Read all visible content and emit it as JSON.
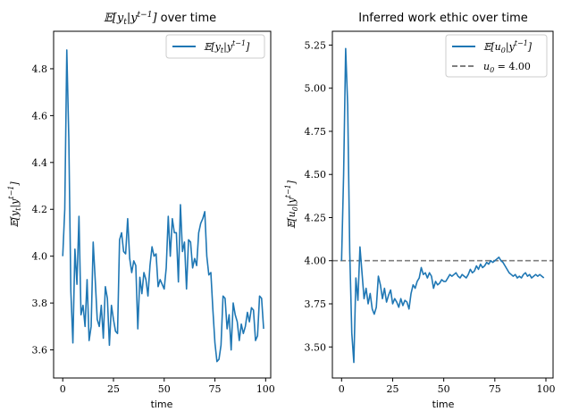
{
  "chart_data": [
    {
      "type": "line",
      "title": "𝔼[y_t|y^{t-1}] over time",
      "xlabel": "time",
      "ylabel": "𝔼[y_t|y^{t-1}]",
      "xlim": [
        -4.5,
        102.5
      ],
      "ylim": [
        3.48,
        4.96
      ],
      "xticks": [
        0,
        25,
        50,
        75,
        100
      ],
      "yticks": [
        3.6,
        3.8,
        4.0,
        4.2,
        4.4,
        4.6,
        4.8
      ],
      "ytick_labels": [
        "3.6",
        "3.8",
        "4.0",
        "4.2",
        "4.4",
        "4.6",
        "4.8"
      ],
      "legend_position": "top-right",
      "grid": false,
      "series": [
        {
          "name": "𝔼[y_t|y^{t-1}]",
          "color": "#1f77b4",
          "x": [
            0,
            1,
            2,
            3,
            4,
            5,
            6,
            7,
            8,
            9,
            10,
            11,
            12,
            13,
            14,
            15,
            16,
            17,
            18,
            19,
            20,
            21,
            22,
            23,
            24,
            25,
            26,
            27,
            28,
            29,
            30,
            31,
            32,
            33,
            34,
            35,
            36,
            37,
            38,
            39,
            40,
            41,
            42,
            43,
            44,
            45,
            46,
            47,
            48,
            49,
            50,
            51,
            52,
            53,
            54,
            55,
            56,
            57,
            58,
            59,
            60,
            61,
            62,
            63,
            64,
            65,
            66,
            67,
            68,
            69,
            70,
            71,
            72,
            73,
            74,
            75,
            76,
            77,
            78,
            79,
            80,
            81,
            82,
            83,
            84,
            85,
            86,
            87,
            88,
            89,
            90,
            91,
            92,
            93,
            94,
            95,
            96,
            97,
            98,
            99
          ],
          "values": [
            4.0,
            4.2,
            4.88,
            4.5,
            3.85,
            3.63,
            4.03,
            3.88,
            4.17,
            3.75,
            3.79,
            3.7,
            3.9,
            3.64,
            3.7,
            4.06,
            3.9,
            3.73,
            3.7,
            3.79,
            3.65,
            3.87,
            3.82,
            3.62,
            3.79,
            3.73,
            3.68,
            3.67,
            4.07,
            4.1,
            4.02,
            4.01,
            4.16,
            3.99,
            3.93,
            3.98,
            3.96,
            3.69,
            3.91,
            3.84,
            3.93,
            3.9,
            3.83,
            3.96,
            4.04,
            4.0,
            4.01,
            3.87,
            3.9,
            3.88,
            3.86,
            3.95,
            4.17,
            4.0,
            4.16,
            4.1,
            4.1,
            3.89,
            4.22,
            4.02,
            4.06,
            3.86,
            4.07,
            4.06,
            3.95,
            3.99,
            3.96,
            4.1,
            4.14,
            4.16,
            4.19,
            4.0,
            3.92,
            3.93,
            3.77,
            3.63,
            3.55,
            3.56,
            3.62,
            3.83,
            3.82,
            3.69,
            3.75,
            3.6,
            3.8,
            3.75,
            3.72,
            3.64,
            3.71,
            3.67,
            3.7,
            3.76,
            3.72,
            3.78,
            3.77,
            3.64,
            3.66,
            3.83,
            3.82,
            3.69
          ]
        }
      ]
    },
    {
      "type": "line",
      "title": "Inferred work ethic over time",
      "xlabel": "time",
      "ylabel": "𝔼[u_0|y^{t-1}]",
      "xlim": [
        -4.5,
        103.5
      ],
      "ylim": [
        3.32,
        5.33
      ],
      "xticks": [
        0,
        25,
        50,
        75,
        100
      ],
      "yticks": [
        3.5,
        3.75,
        4.0,
        4.25,
        4.5,
        4.75,
        5.0,
        5.25
      ],
      "ytick_labels": [
        "3.50",
        "3.75",
        "4.00",
        "4.25",
        "4.50",
        "4.75",
        "5.00",
        "5.25"
      ],
      "legend_position": "top-right",
      "grid": false,
      "reference_line": {
        "name": "u_0 = 4.00",
        "y": 4.0,
        "color": "#7f7f7f",
        "style": "dashed"
      },
      "series": [
        {
          "name": "𝔼[u_0|y^{t-1}]",
          "color": "#1f77b4",
          "x": [
            0,
            1,
            2,
            3,
            4,
            5,
            6,
            7,
            8,
            9,
            10,
            11,
            12,
            13,
            14,
            15,
            16,
            17,
            18,
            19,
            20,
            21,
            22,
            23,
            24,
            25,
            26,
            27,
            28,
            29,
            30,
            31,
            32,
            33,
            34,
            35,
            36,
            37,
            38,
            39,
            40,
            41,
            42,
            43,
            44,
            45,
            46,
            47,
            48,
            49,
            50,
            51,
            52,
            53,
            54,
            55,
            56,
            57,
            58,
            59,
            60,
            61,
            62,
            63,
            64,
            65,
            66,
            67,
            68,
            69,
            70,
            71,
            72,
            73,
            74,
            75,
            76,
            77,
            78,
            79,
            80,
            81,
            82,
            83,
            84,
            85,
            86,
            87,
            88,
            89,
            90,
            91,
            92,
            93,
            94,
            95,
            96,
            97,
            98,
            99
          ],
          "values": [
            4.0,
            4.5,
            5.23,
            4.9,
            4.05,
            3.58,
            3.41,
            3.9,
            3.77,
            4.08,
            3.93,
            3.78,
            3.84,
            3.75,
            3.81,
            3.72,
            3.69,
            3.73,
            3.91,
            3.86,
            3.78,
            3.84,
            3.76,
            3.8,
            3.83,
            3.75,
            3.78,
            3.76,
            3.73,
            3.78,
            3.74,
            3.77,
            3.76,
            3.72,
            3.81,
            3.86,
            3.84,
            3.88,
            3.9,
            3.96,
            3.92,
            3.93,
            3.9,
            3.93,
            3.91,
            3.84,
            3.88,
            3.86,
            3.87,
            3.89,
            3.88,
            3.88,
            3.9,
            3.92,
            3.91,
            3.92,
            3.93,
            3.91,
            3.9,
            3.92,
            3.91,
            3.9,
            3.92,
            3.95,
            3.93,
            3.94,
            3.97,
            3.95,
            3.98,
            3.96,
            3.97,
            3.99,
            3.98,
            4.0,
            3.99,
            4.0,
            4.01,
            4.02,
            4.0,
            3.99,
            3.97,
            3.95,
            3.93,
            3.92,
            3.91,
            3.92,
            3.9,
            3.91,
            3.9,
            3.92,
            3.93,
            3.91,
            3.92,
            3.9,
            3.91,
            3.92,
            3.91,
            3.92,
            3.91,
            3.9
          ]
        }
      ]
    }
  ]
}
